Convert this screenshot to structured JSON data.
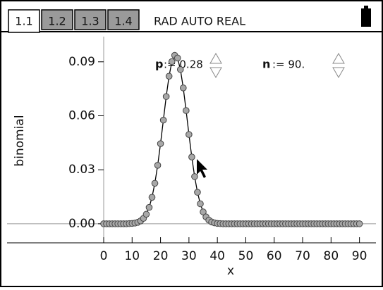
{
  "header": {
    "tabs": [
      "1.1",
      "1.2",
      "1.3",
      "1.4"
    ],
    "status": "RAD AUTO REAL"
  },
  "sliders": [
    {
      "name": "p",
      "value": ":= 0.28"
    },
    {
      "name": "n",
      "value": ":= 90."
    }
  ],
  "chart_data": {
    "type": "scatter",
    "ylabel": "binomial",
    "xlabel": "x",
    "x": [
      0,
      1,
      2,
      3,
      4,
      5,
      6,
      7,
      8,
      9,
      10,
      11,
      12,
      13,
      14,
      15,
      16,
      17,
      18,
      19,
      20,
      21,
      22,
      23,
      24,
      25,
      26,
      27,
      28,
      29,
      30,
      31,
      32,
      33,
      34,
      35,
      36,
      37,
      38,
      39,
      40,
      41,
      42,
      43,
      44,
      45,
      46,
      47,
      48,
      49,
      50,
      51,
      52,
      53,
      54,
      55,
      56,
      57,
      58,
      59,
      60,
      61,
      62,
      63,
      64,
      65,
      66,
      67,
      68,
      69,
      70,
      71,
      72,
      73,
      74,
      75,
      76,
      77,
      78,
      79,
      80,
      81,
      82,
      83,
      84,
      85,
      86,
      87,
      88,
      89,
      90
    ],
    "values": [
      0,
      0,
      0,
      0,
      0,
      0,
      0,
      0,
      0,
      0.0001,
      0.0002,
      0.0004,
      0.0008,
      0.0016,
      0.003,
      0.0053,
      0.0091,
      0.0147,
      0.0225,
      0.0325,
      0.0445,
      0.0576,
      0.0707,
      0.082,
      0.0901,
      0.0936,
      0.0921,
      0.0857,
      0.0755,
      0.0629,
      0.0496,
      0.0371,
      0.0262,
      0.0175,
      0.0111,
      0.0066,
      0.0038,
      0.002,
      0.001,
      0.0005,
      0.0002,
      0.0001,
      0,
      0,
      0,
      0,
      0,
      0,
      0,
      0,
      0,
      0,
      0,
      0,
      0,
      0,
      0,
      0,
      0,
      0,
      0,
      0,
      0,
      0,
      0,
      0,
      0,
      0,
      0,
      0,
      0,
      0,
      0,
      0,
      0,
      0,
      0,
      0,
      0,
      0,
      0,
      0,
      0,
      0,
      0,
      0,
      0,
      0,
      0,
      0,
      0
    ],
    "color": "#a8a8a8",
    "line": true,
    "xlim": [
      -34,
      95.8
    ],
    "ylim": [
      -0.0106,
      0.104
    ],
    "xticks": [
      0,
      10,
      20,
      30,
      40,
      50,
      60,
      70,
      80,
      90
    ],
    "yticks": [
      {
        "value": 0,
        "label": "0.00"
      },
      {
        "value": 0.03,
        "label": "0.03"
      },
      {
        "value": 0.06,
        "label": "0.06"
      },
      {
        "value": 0.09,
        "label": "0.09"
      }
    ]
  }
}
